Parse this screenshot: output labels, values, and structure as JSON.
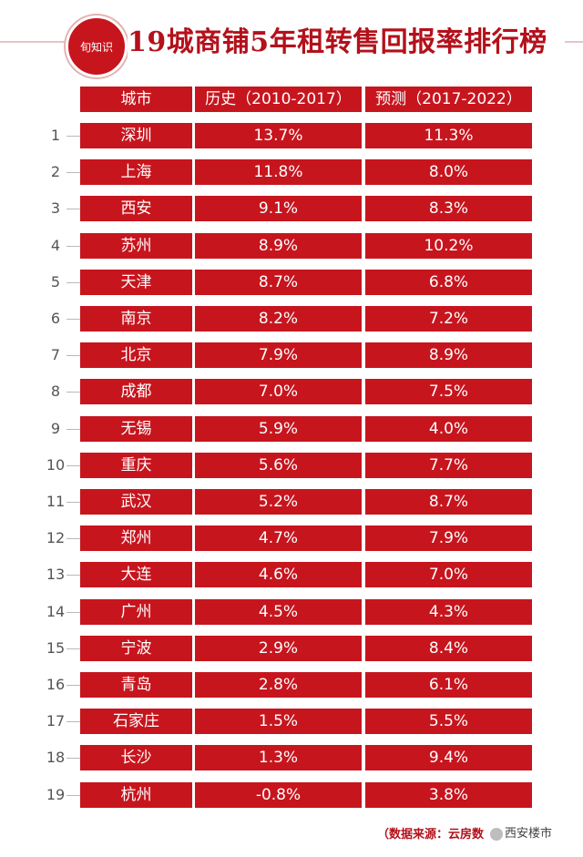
{
  "header": {
    "logo_text": "旬知识",
    "title": "19城商铺5年租转售回报率排行榜"
  },
  "table": {
    "columns": [
      "城市",
      "历史（2010-2017）",
      "预测（2017-2022）"
    ],
    "rows": [
      {
        "rank": "1",
        "city": "深圳",
        "history": "13.7%",
        "forecast": "11.3%"
      },
      {
        "rank": "2",
        "city": "上海",
        "history": "11.8%",
        "forecast": "8.0%"
      },
      {
        "rank": "3",
        "city": "西安",
        "history": "9.1%",
        "forecast": "8.3%"
      },
      {
        "rank": "4",
        "city": "苏州",
        "history": "8.9%",
        "forecast": "10.2%"
      },
      {
        "rank": "5",
        "city": "天津",
        "history": "8.7%",
        "forecast": "6.8%"
      },
      {
        "rank": "6",
        "city": "南京",
        "history": "8.2%",
        "forecast": "7.2%"
      },
      {
        "rank": "7",
        "city": "北京",
        "history": "7.9%",
        "forecast": "8.9%"
      },
      {
        "rank": "8",
        "city": "成都",
        "history": "7.0%",
        "forecast": "7.5%"
      },
      {
        "rank": "9",
        "city": "无锡",
        "history": "5.9%",
        "forecast": "4.0%"
      },
      {
        "rank": "10",
        "city": "重庆",
        "history": "5.6%",
        "forecast": "7.7%"
      },
      {
        "rank": "11",
        "city": "武汉",
        "history": "5.2%",
        "forecast": "8.7%"
      },
      {
        "rank": "12",
        "city": "郑州",
        "history": "4.7%",
        "forecast": "7.9%"
      },
      {
        "rank": "13",
        "city": "大连",
        "history": "4.6%",
        "forecast": "7.0%"
      },
      {
        "rank": "14",
        "city": "广州",
        "history": "4.5%",
        "forecast": "4.3%"
      },
      {
        "rank": "15",
        "city": "宁波",
        "history": "2.9%",
        "forecast": "8.4%"
      },
      {
        "rank": "16",
        "city": "青岛",
        "history": "2.8%",
        "forecast": "6.1%"
      },
      {
        "rank": "17",
        "city": "石家庄",
        "history": "1.5%",
        "forecast": "5.5%"
      },
      {
        "rank": "18",
        "city": "长沙",
        "history": "1.3%",
        "forecast": "9.4%"
      },
      {
        "rank": "19",
        "city": "杭州",
        "history": "-0.8%",
        "forecast": "3.8%"
      }
    ]
  },
  "footer": {
    "source": "（数据来源：云房数",
    "watermark": "西安楼市"
  },
  "colors": {
    "accent": "#c7151e",
    "title": "#b3111b"
  }
}
